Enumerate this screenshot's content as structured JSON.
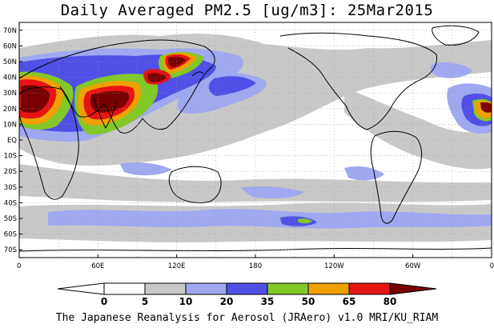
{
  "title": "Daily Averaged PM2.5 [ug/m3]: 25Mar2015",
  "footer": "The Japanese Reanalysis for Aerosol (JRAero) v1.0 MRI/KU_RIAM",
  "colors": {
    "c5": "#ffffff",
    "c10": "#c8c8c8",
    "c20": "#a0a8f0",
    "c35": "#5050e6",
    "c50": "#82c828",
    "c65": "#f0a000",
    "c80": "#e61414",
    "c80plus": "#780000",
    "land_line": "#000000",
    "grid": "#9a9a9a"
  },
  "chart_data": {
    "type": "heatmap",
    "projection": "equirectangular, 0-360 longitude, 75S-75N latitude",
    "xlim": [
      0,
      360
    ],
    "ylim": [
      -75,
      75
    ],
    "grid": true,
    "lat_ticks": [
      "70N",
      "60N",
      "50N",
      "40N",
      "30N",
      "20N",
      "10N",
      "EQ",
      "10S",
      "20S",
      "30S",
      "40S",
      "50S",
      "60S",
      "70S"
    ],
    "lon_ticks": [
      "0",
      "60E",
      "120E",
      "180",
      "120W",
      "60W",
      "0"
    ],
    "colorbar": {
      "ticks": [
        "0",
        "5",
        "10",
        "20",
        "35",
        "50",
        "65",
        "80"
      ],
      "levels": [
        0,
        5,
        10,
        20,
        35,
        50,
        65,
        80
      ]
    },
    "regions": [
      {
        "lon": [
          20,
          60
        ],
        "lat": [
          15,
          35
        ],
        "value": 85
      },
      {
        "lon": [
          60,
          80
        ],
        "lat": [
          20,
          35
        ],
        "value": 70
      },
      {
        "lon": [
          75,
          95
        ],
        "lat": [
          15,
          30
        ],
        "value": 55
      },
      {
        "lon": [
          95,
          120
        ],
        "lat": [
          25,
          40
        ],
        "value": 80
      },
      {
        "lon": [
          100,
          130
        ],
        "lat": [
          40,
          55
        ],
        "value": 50
      },
      {
        "lon": [
          120,
          160
        ],
        "lat": [
          20,
          45
        ],
        "value": 25
      },
      {
        "lon": [
          150,
          210
        ],
        "lat": [
          25,
          45
        ],
        "value": 12
      },
      {
        "lon": [
          300,
          360
        ],
        "lat": [
          0,
          40
        ],
        "value": 15
      },
      {
        "lon": [
          340,
          360
        ],
        "lat": [
          0,
          30
        ],
        "value": 60
      },
      {
        "lon": [
          0,
          360
        ],
        "lat": [
          -70,
          -50
        ],
        "value": 12
      },
      {
        "lon": [
          200,
          300
        ],
        "lat": [
          -40,
          -20
        ],
        "value": 12
      }
    ]
  }
}
